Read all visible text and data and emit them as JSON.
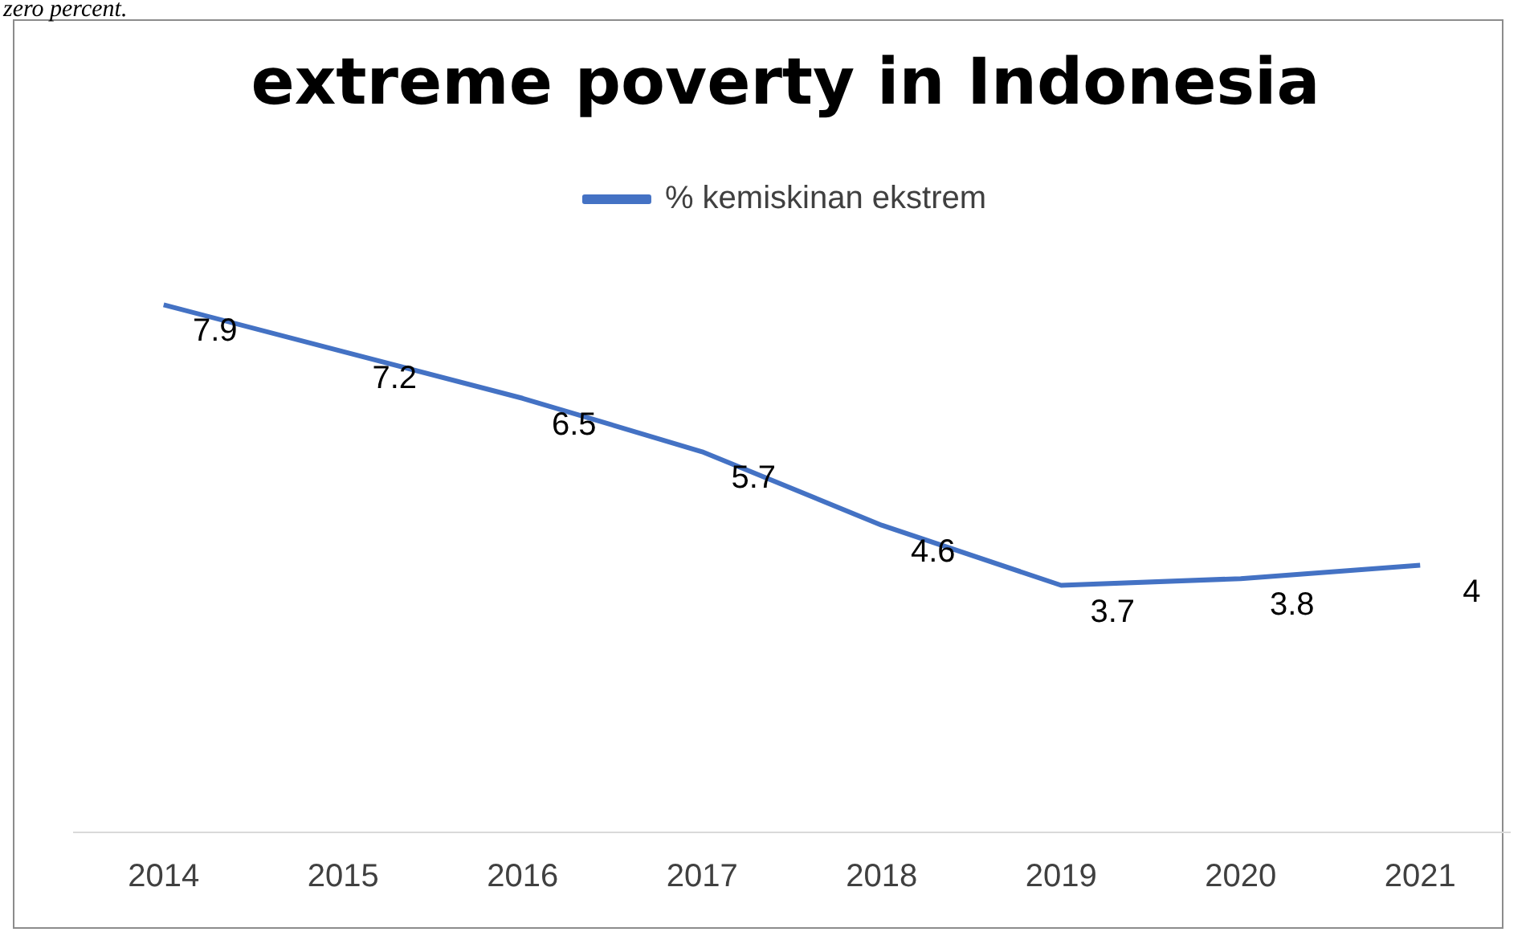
{
  "chart_data": {
    "type": "line",
    "title": "extreme poverty in Indonesia",
    "annotations": [
      "zero percent."
    ],
    "categories": [
      "2014",
      "2015",
      "2016",
      "2017",
      "2018",
      "2019",
      "2020",
      "2021"
    ],
    "series": [
      {
        "name": "% kemiskinan ekstrem",
        "color": "#4472c4",
        "values": [
          7.9,
          7.2,
          6.5,
          5.7,
          4.6,
          3.7,
          3.8,
          4
        ]
      }
    ],
    "tick_labels": "x",
    "data_labels": true,
    "legend": "top",
    "grid": false,
    "marker": "none",
    "line_style": "solid"
  }
}
